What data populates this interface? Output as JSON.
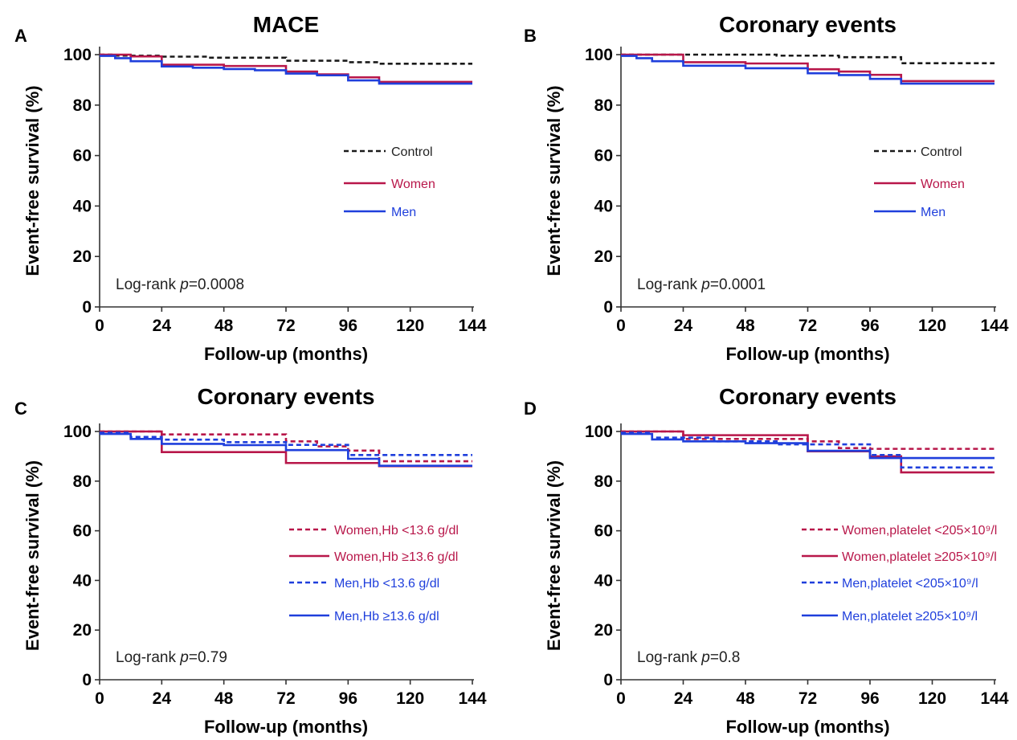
{
  "colors": {
    "control": "#1a1a1a",
    "women": "#b8174a",
    "men": "#1f3fdc"
  },
  "chart_data": [
    {
      "panel": "A",
      "type": "line",
      "title": "MACE",
      "xlabel": "Follow-up (months)",
      "ylabel": "Event-free survival (%)",
      "xlim": [
        0,
        144
      ],
      "ylim": [
        0,
        100
      ],
      "xticks": [
        "0",
        "24",
        "48",
        "72",
        "96",
        "120",
        "144"
      ],
      "yticks": [
        "0",
        "20",
        "40",
        "60",
        "80",
        "100"
      ],
      "annotation": {
        "prefix": "Log-rank ",
        "p": "p",
        "value": "=0.0008"
      },
      "series": [
        {
          "name": "Control",
          "color": "#1a1a1a",
          "style": "dashed",
          "x": [
            0,
            6,
            24,
            42,
            72,
            96,
            108,
            144
          ],
          "y": [
            100,
            99.6,
            99.2,
            98.8,
            97.6,
            97.0,
            96.4,
            96.4
          ]
        },
        {
          "name": "Women",
          "color": "#b8174a",
          "style": "solid",
          "x": [
            0,
            12,
            24,
            48,
            72,
            84,
            96,
            108,
            144
          ],
          "y": [
            100,
            99.3,
            96.0,
            95.5,
            93.3,
            92.2,
            91.0,
            89.2,
            89.2
          ]
        },
        {
          "name": "Men",
          "color": "#1f3fdc",
          "style": "solid",
          "x": [
            0,
            6,
            12,
            24,
            36,
            48,
            60,
            72,
            84,
            96,
            108,
            144
          ],
          "y": [
            99.5,
            98.6,
            97.4,
            95.3,
            94.8,
            94.3,
            93.8,
            92.5,
            91.8,
            89.8,
            88.5,
            88.5
          ]
        }
      ]
    },
    {
      "panel": "B",
      "type": "line",
      "title": "Coronary events",
      "xlabel": "Follow-up (months)",
      "ylabel": "Event-free survival (%)",
      "xlim": [
        0,
        144
      ],
      "ylim": [
        0,
        100
      ],
      "xticks": [
        "0",
        "24",
        "48",
        "72",
        "96",
        "120",
        "144"
      ],
      "yticks": [
        "0",
        "20",
        "40",
        "60",
        "80",
        "100"
      ],
      "annotation": {
        "prefix": "Log-rank ",
        "p": "p",
        "value": "=0.0001"
      },
      "series": [
        {
          "name": "Control",
          "color": "#1a1a1a",
          "style": "dashed",
          "x": [
            0,
            24,
            60,
            84,
            108,
            144
          ],
          "y": [
            100,
            100,
            99.6,
            99.0,
            96.6,
            96.6
          ]
        },
        {
          "name": "Women",
          "color": "#b8174a",
          "style": "solid",
          "x": [
            0,
            24,
            48,
            72,
            84,
            96,
            108,
            144
          ],
          "y": [
            100,
            97.0,
            96.5,
            94.2,
            93.3,
            92.0,
            89.5,
            89.5
          ]
        },
        {
          "name": "Men",
          "color": "#1f3fdc",
          "style": "solid",
          "x": [
            0,
            6,
            12,
            24,
            48,
            72,
            84,
            96,
            108,
            144
          ],
          "y": [
            99.5,
            98.6,
            97.4,
            95.6,
            94.6,
            92.6,
            91.9,
            90.4,
            88.5,
            88.5
          ]
        }
      ]
    },
    {
      "panel": "C",
      "type": "line",
      "title": "Coronary events",
      "xlabel": "Follow-up (months)",
      "ylabel": "Event-free survival (%)",
      "xlim": [
        0,
        144
      ],
      "ylim": [
        0,
        100
      ],
      "xticks": [
        "0",
        "24",
        "48",
        "72",
        "96",
        "120",
        "144"
      ],
      "yticks": [
        "0",
        "20",
        "40",
        "60",
        "80",
        "100"
      ],
      "annotation": {
        "prefix": "Log-rank ",
        "p": "p",
        "value": "=0.79"
      },
      "series": [
        {
          "name": "Women,Hb <13.6 g/dl",
          "color": "#b8174a",
          "style": "dashed",
          "x": [
            0,
            24,
            72,
            84,
            96,
            108,
            144
          ],
          "y": [
            100,
            98.8,
            96.0,
            94.0,
            92.3,
            88.0,
            88.0
          ]
        },
        {
          "name": "Women,Hb ≥13.6 g/dl",
          "color": "#b8174a",
          "style": "solid",
          "x": [
            0,
            24,
            72,
            108,
            144
          ],
          "y": [
            100,
            91.7,
            87.3,
            86.0,
            86.0
          ]
        },
        {
          "name": "Men,Hb <13.6 g/dl",
          "color": "#1f3fdc",
          "style": "dashed",
          "x": [
            0,
            12,
            24,
            48,
            72,
            96,
            144
          ],
          "y": [
            99.5,
            97.8,
            96.7,
            95.7,
            94.6,
            90.5,
            90.5
          ]
        },
        {
          "name": "Men,Hb ≥13.6 g/dl",
          "color": "#1f3fdc",
          "style": "solid",
          "x": [
            0,
            12,
            24,
            48,
            72,
            96,
            108,
            144
          ],
          "y": [
            99,
            97.0,
            95.0,
            94.5,
            92.5,
            89.0,
            86.2,
            86.2
          ]
        }
      ]
    },
    {
      "panel": "D",
      "type": "line",
      "title": "Coronary events",
      "xlabel": "Follow-up (months)",
      "ylabel": "Event-free survival (%)",
      "xlim": [
        0,
        144
      ],
      "ylim": [
        0,
        100
      ],
      "xticks": [
        "0",
        "24",
        "48",
        "72",
        "96",
        "120",
        "144"
      ],
      "yticks": [
        "0",
        "20",
        "40",
        "60",
        "80",
        "100"
      ],
      "annotation": {
        "prefix": "Log-rank ",
        "p": "p",
        "value": "=0.8"
      },
      "series": [
        {
          "name": "Women,platelet <205×10⁹/l",
          "color": "#b8174a",
          "style": "dashed",
          "x": [
            0,
            24,
            72,
            84,
            96,
            144
          ],
          "y": [
            100,
            97.0,
            96.0,
            93.3,
            93.0,
            93.0
          ]
        },
        {
          "name": "Women,platelet ≥205×10⁹/l",
          "color": "#b8174a",
          "style": "solid",
          "x": [
            0,
            24,
            72,
            96,
            108,
            144
          ],
          "y": [
            100,
            98.5,
            92.0,
            90.0,
            83.5,
            83.5
          ]
        },
        {
          "name": "Men,platelet <205×10⁹/l",
          "color": "#1f3fdc",
          "style": "dashed",
          "x": [
            0,
            12,
            36,
            60,
            96,
            108,
            144
          ],
          "y": [
            99.5,
            97.5,
            96.0,
            94.8,
            90.5,
            85.5,
            85.5
          ]
        },
        {
          "name": "Men,platelet ≥205×10⁹/l",
          "color": "#1f3fdc",
          "style": "solid",
          "x": [
            0,
            12,
            24,
            48,
            72,
            96,
            144
          ],
          "y": [
            99,
            96.8,
            96.0,
            95.3,
            92.2,
            89.3,
            89.3
          ]
        }
      ]
    }
  ]
}
